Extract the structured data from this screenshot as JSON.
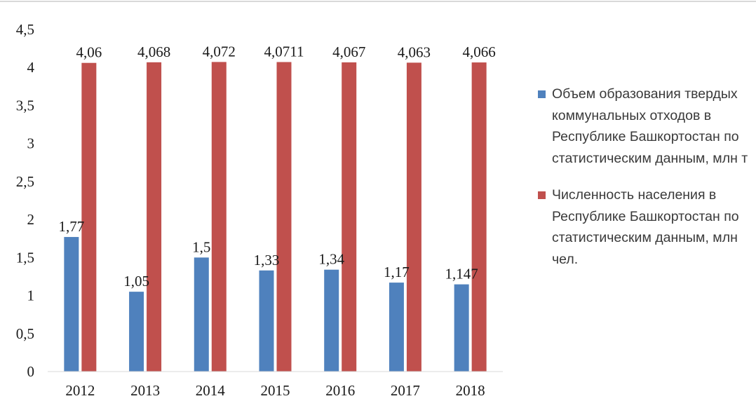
{
  "chart_data": {
    "type": "bar",
    "categories": [
      "2012",
      "2013",
      "2014",
      "2015",
      "2016",
      "2017",
      "2018"
    ],
    "series": [
      {
        "name": "Объем образования твердых коммунальных отходов в Республике Башкортостан по статистическим данным, млн т",
        "color": "#4f81bd",
        "values": [
          1.77,
          1.05,
          1.5,
          1.33,
          1.34,
          1.17,
          1.147
        ],
        "labels": [
          "1,77",
          "1,05",
          "1,5",
          "1,33",
          "1,34",
          "1,17",
          "1,147"
        ]
      },
      {
        "name": "Численность населения в Республике Башкортостан по статистическим данным, млн чел.",
        "color": "#c0504d",
        "values": [
          4.06,
          4.068,
          4.072,
          4.0711,
          4.067,
          4.063,
          4.066
        ],
        "labels": [
          "4,06",
          "4,068",
          "4,072",
          "4,0711",
          "4,067",
          "4,063",
          "4,066"
        ]
      }
    ],
    "y_ticks": [
      0,
      0.5,
      1,
      1.5,
      2,
      2.5,
      3,
      3.5,
      4,
      4.5
    ],
    "y_tick_labels": [
      "0",
      "0,5",
      "1",
      "1,5",
      "2",
      "2,5",
      "3",
      "3,5",
      "4",
      "4,5"
    ],
    "ylim": [
      0,
      4.5
    ],
    "grid": false,
    "legend_position": "right",
    "title": "",
    "xlabel": "",
    "ylabel": ""
  }
}
